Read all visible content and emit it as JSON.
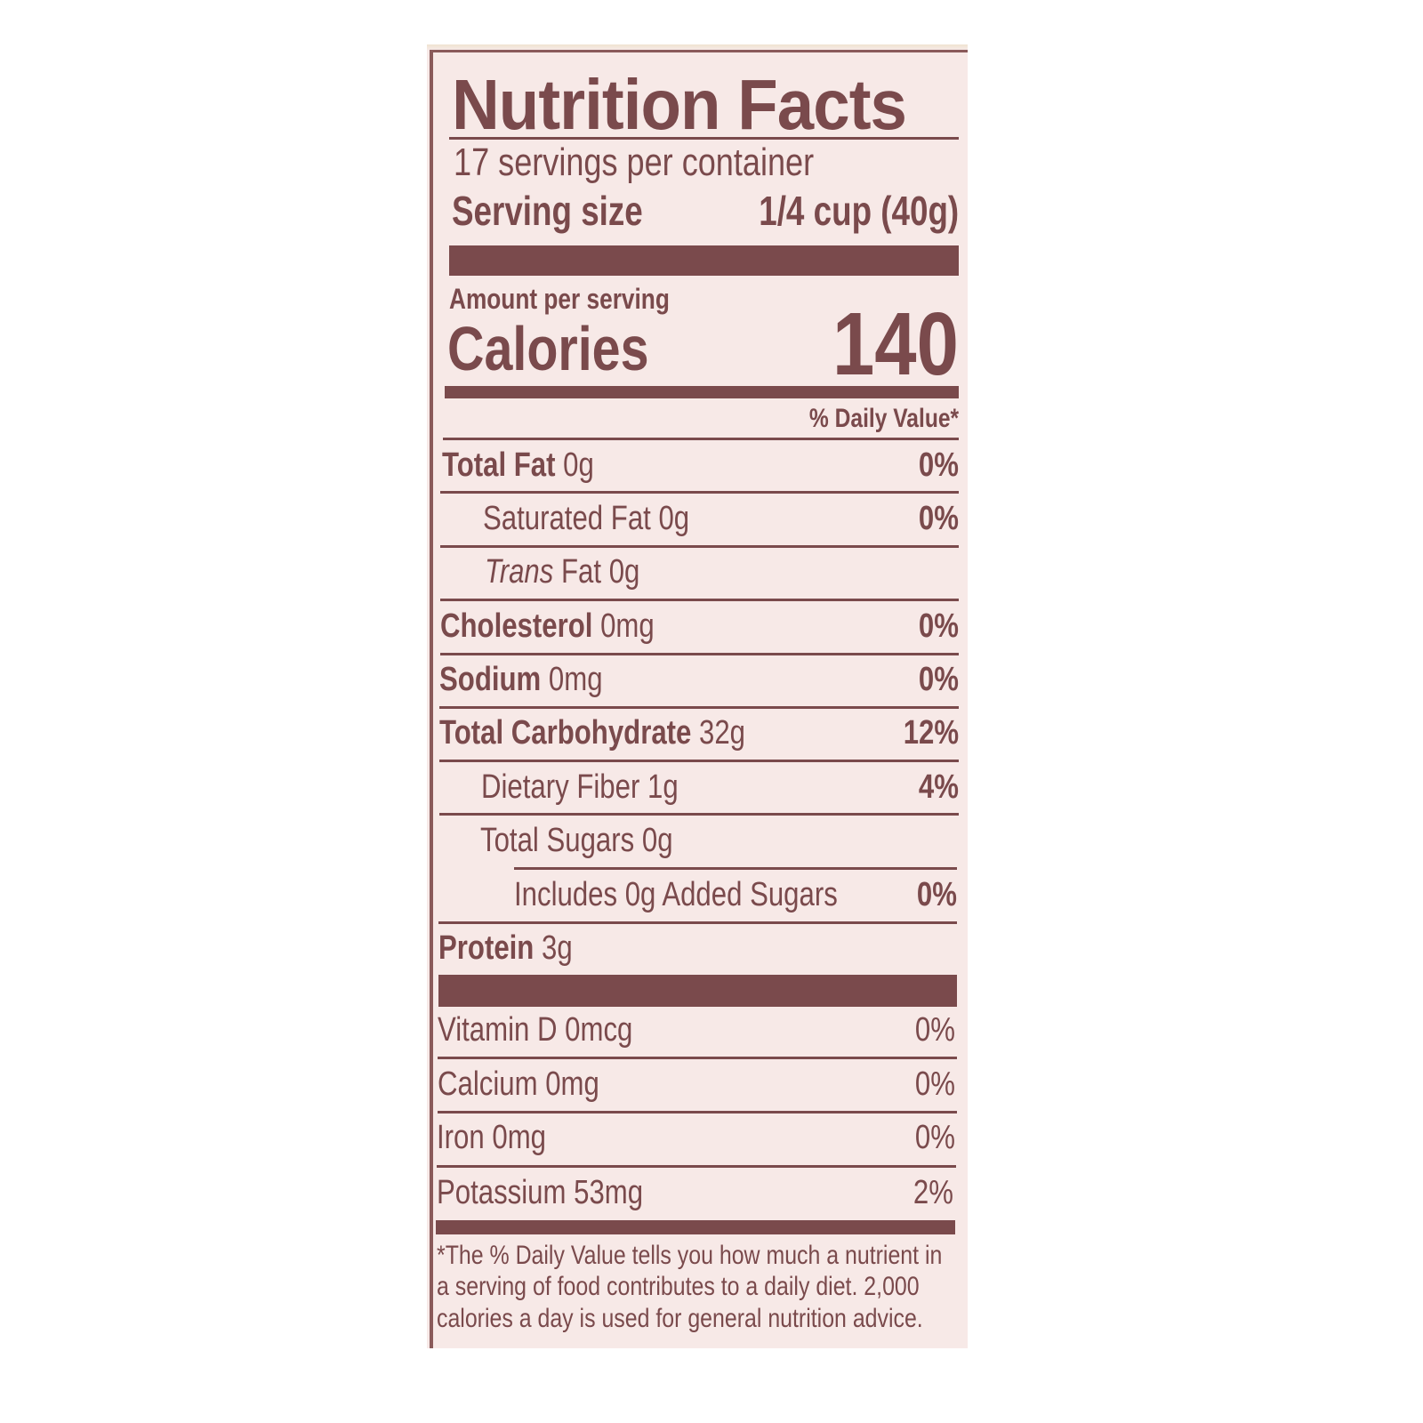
{
  "title": "Nutrition Facts",
  "servings_per_container": "17 servings per container",
  "serving_size_label": "Serving size",
  "serving_size_value": "1/4 cup (40g)",
  "amount_per_serving": "Amount per serving",
  "calories_label": "Calories",
  "calories_value": "140",
  "daily_value_header": "% Daily Value*",
  "nutrients": [
    {
      "name": "Total Fat",
      "amount": "0g",
      "dv": "0%"
    },
    {
      "name": "Saturated Fat",
      "amount": "0g",
      "dv": "0%"
    },
    {
      "name": "Trans",
      "name_suffix": "Fat",
      "amount": "0g",
      "dv": ""
    },
    {
      "name": "Cholesterol",
      "amount": "0mg",
      "dv": "0%"
    },
    {
      "name": "Sodium",
      "amount": "0mg",
      "dv": "0%"
    },
    {
      "name": "Total Carbohydrate",
      "amount": "32g",
      "dv": "12%"
    },
    {
      "name": "Dietary Fiber",
      "amount": "1g",
      "dv": "4%"
    },
    {
      "name": "Total Sugars",
      "amount": "0g",
      "dv": ""
    },
    {
      "name": "Includes 0g Added Sugars",
      "amount": "",
      "dv": "0%"
    },
    {
      "name": "Protein",
      "amount": "3g",
      "dv": ""
    }
  ],
  "vitamins": [
    {
      "name": "Vitamin D",
      "amount": "0mcg",
      "dv": "0%"
    },
    {
      "name": "Calcium",
      "amount": "0mg",
      "dv": "0%"
    },
    {
      "name": "Iron",
      "amount": "0mg",
      "dv": "0%"
    },
    {
      "name": "Potassium",
      "amount": "53mg",
      "dv": "2%"
    }
  ],
  "footnote": [
    "*The % Daily Value tells you how much a nutrient in",
    "a serving of food contributes to a daily diet. 2,000",
    "calories a day is used for general nutrition advice."
  ],
  "colors": {
    "ink": "#7a4a4c",
    "background": "#f7e9e7"
  }
}
